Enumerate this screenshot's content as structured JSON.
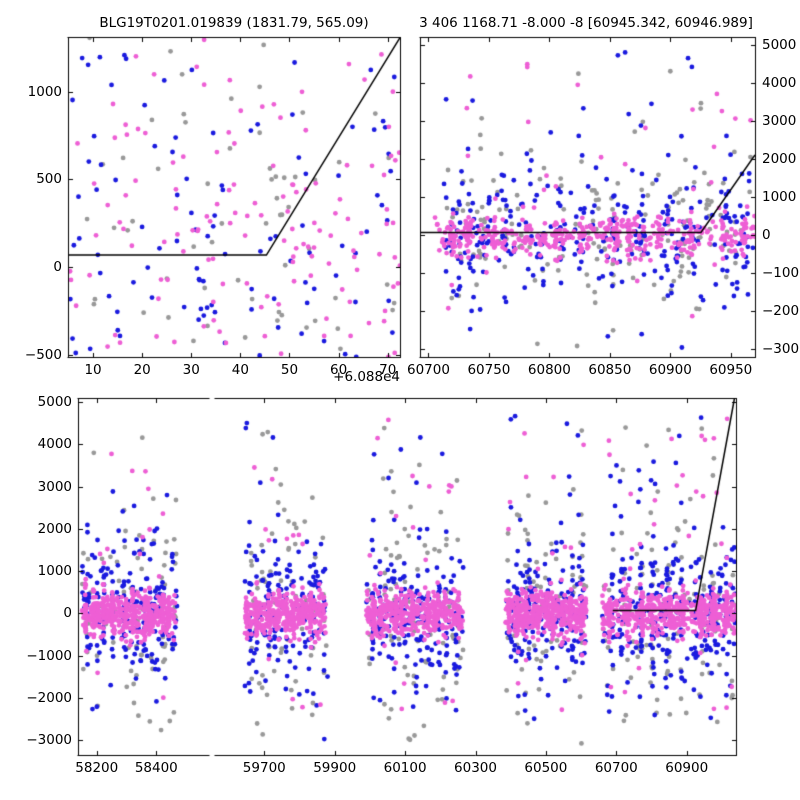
{
  "colors": {
    "magenta": "#EE5FD5",
    "blue": "#1A1ADF",
    "gray": "#999999",
    "fit_line": "#000000",
    "axis": "#000000",
    "background": "#ffffff"
  },
  "chart_data": [
    {
      "id": "top-left",
      "type": "scatter",
      "title": "BLG19T0201.019839 (1831.79, 565.09)",
      "xlim": [
        60884.9,
        60952.5
      ],
      "ylim": [
        -510,
        1310
      ],
      "xticks": [
        60890,
        60900,
        60910,
        60920,
        60930,
        60940,
        60950
      ],
      "xtick_labels": [
        "10",
        "20",
        "30",
        "40",
        "50",
        "60",
        "70"
      ],
      "x_offset_text": "+6.088e4",
      "yticks": [
        -500,
        0,
        500,
        1000
      ],
      "ytick_labels": [
        "−500",
        "0",
        "500",
        "1000"
      ],
      "ytick_side": "left",
      "grid": false,
      "legend": null,
      "fit_line": [
        [
          60884.9,
          70
        ],
        [
          60925.3,
          70
        ],
        [
          60952.5,
          1307
        ]
      ],
      "series": [
        {
          "name": "gray",
          "clusters": [
            {
              "x0": 60885,
              "x1": 60952.5,
              "n": 62,
              "ymu": 280,
              "ysig": 420,
              "uniform_frac": 0.45
            }
          ]
        },
        {
          "name": "blue",
          "clusters": [
            {
              "x0": 60885,
              "x1": 60952.5,
              "n": 108,
              "ymu": 120,
              "ysig": 420,
              "uniform_frac": 0.4
            }
          ]
        },
        {
          "name": "magenta",
          "clusters": [
            {
              "x0": 60885,
              "x1": 60952.5,
              "n": 140,
              "ymu": 170,
              "ysig": 360,
              "uniform_frac": 0.35
            }
          ]
        }
      ]
    },
    {
      "id": "top-right",
      "type": "scatter",
      "title": "3 406 1168.71 -8.000 -8 [60945.342, 60946.989]",
      "xlim": [
        60693,
        60970
      ],
      "ylim": [
        -3200,
        5200
      ],
      "xticks": [
        60700,
        60750,
        60800,
        60850,
        60900,
        60950
      ],
      "xtick_labels": [
        "60700",
        "60750",
        "60800",
        "60850",
        "60900",
        "60950"
      ],
      "x_offset_text": null,
      "yticks": [
        -3000,
        -2000,
        -1000,
        0,
        1000,
        2000,
        3000,
        4000,
        5000
      ],
      "ytick_labels": [
        "−3000",
        "−2000",
        "−1000",
        "0",
        "1000",
        "2000",
        "3000",
        "4000",
        "5000"
      ],
      "ytick_side": "right",
      "grid": false,
      "legend": null,
      "fit_line": [
        [
          60693,
          70
        ],
        [
          60925.3,
          70
        ],
        [
          60970,
          2103
        ]
      ],
      "series": [
        {
          "name": "gray",
          "clusters": [
            {
              "x0": 60715,
              "x1": 60970,
              "n": 175,
              "ymu": 150,
              "ysig": 1050,
              "uniform_frac": 0.18,
              "urange": [
                -3200,
                4600
              ],
              "nights": 12,
              "snap_frac": 0.3
            }
          ]
        },
        {
          "name": "blue",
          "clusters": [
            {
              "x0": 60712,
              "x1": 60970,
              "n": 320,
              "ymu": 0,
              "ysig": 820,
              "uniform_frac": 0.14,
              "urange": [
                -3100,
                4900
              ],
              "nights": 12,
              "snap_frac": 0.3
            }
          ]
        },
        {
          "name": "magenta",
          "clusters": [
            {
              "x0": 60705,
              "x1": 60970,
              "n": 500,
              "ymu": -30,
              "ysig": 270,
              "uniform_frac": 0.06,
              "urange": [
                -2400,
                4700
              ],
              "nights": 12,
              "snap_frac": 0.3
            }
          ]
        }
      ]
    },
    {
      "id": "bottom-left",
      "type": "scatter",
      "title": "",
      "xlim": [
        58137,
        58577
      ],
      "ylim": [
        -3350,
        5100
      ],
      "xticks": [
        58200,
        58400
      ],
      "xtick_labels": [
        "58200",
        "58400"
      ],
      "x_offset_text": null,
      "yticks": [
        -3000,
        -2000,
        -1000,
        0,
        1000,
        2000,
        3000,
        4000,
        5000
      ],
      "ytick_labels": [
        "−3000",
        "−2000",
        "−1000",
        "0",
        "1000",
        "2000",
        "3000",
        "4000",
        "5000"
      ],
      "ytick_side": "left",
      "grid": false,
      "legend": null,
      "fit_line": null,
      "series": [
        {
          "name": "gray",
          "clusters": [
            {
              "x0": 58150,
              "x1": 58470,
              "n": 85,
              "ymu": 0,
              "ysig": 1250,
              "uniform_frac": 0.18,
              "urange": [
                -3300,
                4300
              ],
              "nights": 10,
              "snap_frac": 0.35
            }
          ]
        },
        {
          "name": "blue",
          "clusters": [
            {
              "x0": 58150,
              "x1": 58470,
              "n": 210,
              "ymu": 0,
              "ysig": 760,
              "uniform_frac": 0.12,
              "urange": [
                -3000,
                3500
              ],
              "nights": 10,
              "snap_frac": 0.35
            }
          ]
        },
        {
          "name": "magenta",
          "clusters": [
            {
              "x0": 58150,
              "x1": 58465,
              "n": 500,
              "ymu": 0,
              "ysig": 250,
              "uniform_frac": 0.05,
              "urange": [
                -2200,
                3800
              ],
              "nights": 10,
              "snap_frac": 0.35
            }
          ]
        }
      ]
    },
    {
      "id": "bottom-right",
      "type": "scatter",
      "title": "",
      "xlim": [
        59560,
        61040
      ],
      "ylim": [
        -3350,
        5100
      ],
      "xticks": [
        59700,
        59900,
        60100,
        60300,
        60500,
        60700,
        60900
      ],
      "xtick_labels": [
        "59700",
        "59900",
        "60100",
        "60300",
        "60500",
        "60700",
        "60900"
      ],
      "x_offset_text": null,
      "yticks": [
        -3000,
        -2000,
        -1000,
        0,
        1000,
        2000,
        3000,
        4000,
        5000
      ],
      "ytick_labels": null,
      "ytick_side": "right",
      "grid": false,
      "legend": null,
      "fit_line": [
        [
          60690,
          70
        ],
        [
          60925.3,
          70
        ],
        [
          61035.8,
          5100
        ]
      ],
      "series": [
        {
          "name": "gray",
          "clusters": [
            {
              "x0": 59645,
              "x1": 59880,
              "n": 72,
              "ymu": 50,
              "ysig": 1250,
              "uniform_frac": 0.16,
              "urange": [
                -3300,
                4500
              ],
              "nights": 9,
              "snap_frac": 0.35
            },
            {
              "x0": 59990,
              "x1": 60265,
              "n": 88,
              "ymu": 50,
              "ysig": 1250,
              "uniform_frac": 0.16,
              "urange": [
                -3300,
                4500
              ],
              "nights": 9,
              "snap_frac": 0.35
            },
            {
              "x0": 60385,
              "x1": 60615,
              "n": 78,
              "ymu": 50,
              "ysig": 1250,
              "uniform_frac": 0.16,
              "urange": [
                -3300,
                4500
              ],
              "nights": 9,
              "snap_frac": 0.35
            },
            {
              "x0": 60660,
              "x1": 61040,
              "n": 115,
              "ymu": 50,
              "ysig": 1250,
              "uniform_frac": 0.16,
              "urange": [
                -3300,
                4500
              ],
              "nights": 9,
              "snap_frac": 0.35
            }
          ]
        },
        {
          "name": "blue",
          "clusters": [
            {
              "x0": 59645,
              "x1": 59880,
              "n": 185,
              "ymu": 0,
              "ysig": 800,
              "uniform_frac": 0.12,
              "urange": [
                -3100,
                4850
              ],
              "nights": 9,
              "snap_frac": 0.35
            },
            {
              "x0": 59990,
              "x1": 60265,
              "n": 215,
              "ymu": 0,
              "ysig": 800,
              "uniform_frac": 0.12,
              "urange": [
                -3100,
                4850
              ],
              "nights": 9,
              "snap_frac": 0.35
            },
            {
              "x0": 60385,
              "x1": 60615,
              "n": 195,
              "ymu": 0,
              "ysig": 800,
              "uniform_frac": 0.12,
              "urange": [
                -3100,
                4850
              ],
              "nights": 9,
              "snap_frac": 0.35
            },
            {
              "x0": 60660,
              "x1": 61040,
              "n": 290,
              "ymu": 0,
              "ysig": 800,
              "uniform_frac": 0.12,
              "urange": [
                -3100,
                4850
              ],
              "nights": 9,
              "snap_frac": 0.35
            }
          ]
        },
        {
          "name": "magenta",
          "clusters": [
            {
              "x0": 59645,
              "x1": 59875,
              "n": 430,
              "ymu": 0,
              "ysig": 255,
              "uniform_frac": 0.05,
              "urange": [
                -2300,
                4700
              ],
              "nights": 9,
              "snap_frac": 0.35
            },
            {
              "x0": 59990,
              "x1": 60265,
              "n": 530,
              "ymu": 0,
              "ysig": 255,
              "uniform_frac": 0.05,
              "urange": [
                -2300,
                4700
              ],
              "nights": 9,
              "snap_frac": 0.35
            },
            {
              "x0": 60385,
              "x1": 60615,
              "n": 480,
              "ymu": 0,
              "ysig": 255,
              "uniform_frac": 0.05,
              "urange": [
                -2300,
                4700
              ],
              "nights": 9,
              "snap_frac": 0.35
            },
            {
              "x0": 60660,
              "x1": 61040,
              "n": 620,
              "ymu": 0,
              "ysig": 255,
              "uniform_frac": 0.05,
              "urange": [
                -2300,
                4700
              ],
              "nights": 9,
              "snap_frac": 0.35
            }
          ]
        }
      ]
    }
  ]
}
